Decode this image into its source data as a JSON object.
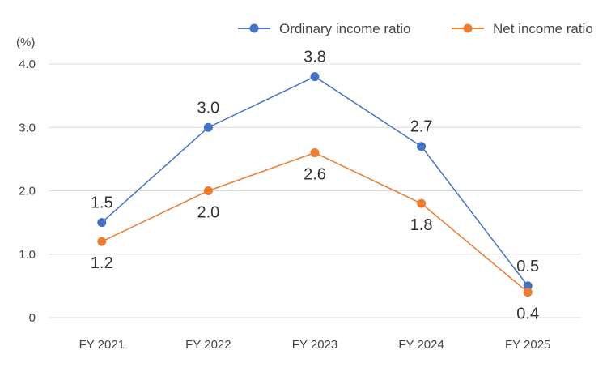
{
  "chart_data": {
    "type": "line",
    "unit_label": "(%)",
    "categories": [
      "FY 2021",
      "FY 2022",
      "FY 2023",
      "FY 2024",
      "FY 2025"
    ],
    "y_ticks": [
      "0",
      "1.0",
      "2.0",
      "3.0",
      "4.0"
    ],
    "ylim": [
      0,
      4
    ],
    "grid": true,
    "legend_position": "top-right",
    "series": [
      {
        "name": "Ordinary income ratio",
        "color": "#4472C4",
        "values": [
          1.5,
          3.0,
          3.8,
          2.7,
          0.5
        ],
        "labels": [
          "1.5",
          "3.0",
          "3.8",
          "2.7",
          "0.5"
        ]
      },
      {
        "name": "Net income ratio",
        "color": "#ED7D31",
        "values": [
          1.2,
          2.0,
          2.6,
          1.8,
          0.4
        ],
        "labels": [
          "1.2",
          "2.0",
          "2.6",
          "1.8",
          "0.4"
        ]
      }
    ]
  }
}
